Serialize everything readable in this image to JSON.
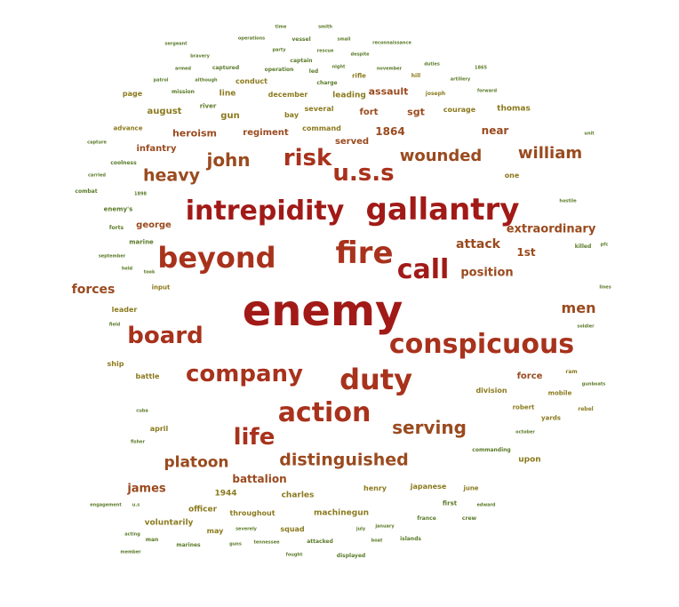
{
  "palette": {
    "darkred": "#a11a17",
    "red": "#a8321c",
    "brown": "#9a4a1e",
    "olive": "#8b7a1e",
    "green": "#5a7a28",
    "lightgreen": "#3f8a3a"
  },
  "words": [
    {
      "text": "enemy",
      "weight": 48,
      "color": "darkred"
    },
    {
      "text": "gallantry",
      "weight": 34,
      "color": "darkred"
    },
    {
      "text": "intrepidity",
      "weight": 30,
      "color": "darkred"
    },
    {
      "text": "beyond",
      "weight": 32,
      "color": "red"
    },
    {
      "text": "fire",
      "weight": 34,
      "color": "red"
    },
    {
      "text": "call",
      "weight": 30,
      "color": "darkred"
    },
    {
      "text": "conspicuous",
      "weight": 30,
      "color": "red"
    },
    {
      "text": "duty",
      "weight": 32,
      "color": "red"
    },
    {
      "text": "action",
      "weight": 30,
      "color": "red"
    },
    {
      "text": "board",
      "weight": 26,
      "color": "red"
    },
    {
      "text": "company",
      "weight": 26,
      "color": "red"
    },
    {
      "text": "u.s.s",
      "weight": 26,
      "color": "red"
    },
    {
      "text": "risk",
      "weight": 26,
      "color": "red"
    },
    {
      "text": "life",
      "weight": 26,
      "color": "red"
    },
    {
      "text": "john",
      "weight": 20,
      "color": "brown"
    },
    {
      "text": "heavy",
      "weight": 19,
      "color": "brown"
    },
    {
      "text": "wounded",
      "weight": 18,
      "color": "brown"
    },
    {
      "text": "william",
      "weight": 18,
      "color": "brown"
    },
    {
      "text": "serving",
      "weight": 20,
      "color": "brown"
    },
    {
      "text": "distinguished",
      "weight": 19,
      "color": "brown"
    },
    {
      "text": "platoon",
      "weight": 17,
      "color": "brown"
    },
    {
      "text": "men",
      "weight": 16,
      "color": "brown"
    },
    {
      "text": "extraordinary",
      "weight": 13,
      "color": "brown"
    },
    {
      "text": "attack",
      "weight": 14,
      "color": "brown"
    },
    {
      "text": "forces",
      "weight": 14,
      "color": "brown"
    },
    {
      "text": "position",
      "weight": 13,
      "color": "brown"
    },
    {
      "text": "1st",
      "weight": 12,
      "color": "brown"
    },
    {
      "text": "james",
      "weight": 13,
      "color": "brown"
    },
    {
      "text": "battalion",
      "weight": 12,
      "color": "brown"
    },
    {
      "text": "near",
      "weight": 12,
      "color": "brown"
    },
    {
      "text": "1864",
      "weight": 12,
      "color": "brown"
    },
    {
      "text": "sgt",
      "weight": 11,
      "color": "brown"
    },
    {
      "text": "fort",
      "weight": 10,
      "color": "brown"
    },
    {
      "text": "assault",
      "weight": 11,
      "color": "brown"
    },
    {
      "text": "served",
      "weight": 10,
      "color": "brown"
    },
    {
      "text": "heroism",
      "weight": 11,
      "color": "brown"
    },
    {
      "text": "regiment",
      "weight": 10,
      "color": "brown"
    },
    {
      "text": "infantry",
      "weight": 10,
      "color": "brown"
    },
    {
      "text": "george",
      "weight": 10,
      "color": "brown"
    },
    {
      "text": "august",
      "weight": 10,
      "color": "olive"
    },
    {
      "text": "gun",
      "weight": 10,
      "color": "olive"
    },
    {
      "text": "thomas",
      "weight": 9,
      "color": "olive"
    },
    {
      "text": "courage",
      "weight": 8,
      "color": "olive"
    },
    {
      "text": "command",
      "weight": 8,
      "color": "olive"
    },
    {
      "text": "several",
      "weight": 8,
      "color": "olive"
    },
    {
      "text": "leading",
      "weight": 9,
      "color": "olive"
    },
    {
      "text": "line",
      "weight": 9,
      "color": "olive"
    },
    {
      "text": "page",
      "weight": 8,
      "color": "olive"
    },
    {
      "text": "conduct",
      "weight": 8,
      "color": "olive"
    },
    {
      "text": "december",
      "weight": 8,
      "color": "olive"
    },
    {
      "text": "bay",
      "weight": 8,
      "color": "olive"
    },
    {
      "text": "advance",
      "weight": 7,
      "color": "olive"
    },
    {
      "text": "one",
      "weight": 8,
      "color": "olive"
    },
    {
      "text": "input",
      "weight": 7,
      "color": "olive"
    },
    {
      "text": "leader",
      "weight": 8,
      "color": "olive"
    },
    {
      "text": "ship",
      "weight": 8,
      "color": "olive"
    },
    {
      "text": "battle",
      "weight": 8,
      "color": "olive"
    },
    {
      "text": "force",
      "weight": 10,
      "color": "brown"
    },
    {
      "text": "division",
      "weight": 8,
      "color": "olive"
    },
    {
      "text": "mobile",
      "weight": 7,
      "color": "olive"
    },
    {
      "text": "upon",
      "weight": 9,
      "color": "olive"
    },
    {
      "text": "april",
      "weight": 8,
      "color": "olive"
    },
    {
      "text": "officer",
      "weight": 9,
      "color": "olive"
    },
    {
      "text": "1944",
      "weight": 9,
      "color": "olive"
    },
    {
      "text": "charles",
      "weight": 9,
      "color": "olive"
    },
    {
      "text": "throughout",
      "weight": 8,
      "color": "olive"
    },
    {
      "text": "machinegun",
      "weight": 9,
      "color": "olive"
    },
    {
      "text": "japanese",
      "weight": 8,
      "color": "olive"
    },
    {
      "text": "henry",
      "weight": 8,
      "color": "olive"
    },
    {
      "text": "june",
      "weight": 7,
      "color": "olive"
    },
    {
      "text": "voluntarily",
      "weight": 9,
      "color": "olive"
    },
    {
      "text": "may",
      "weight": 8,
      "color": "olive"
    },
    {
      "text": "squad",
      "weight": 8,
      "color": "olive"
    },
    {
      "text": "robert",
      "weight": 7,
      "color": "olive"
    },
    {
      "text": "yards",
      "weight": 7,
      "color": "olive"
    },
    {
      "text": "rebel",
      "weight": 6,
      "color": "olive"
    },
    {
      "text": "ram",
      "weight": 6,
      "color": "olive"
    },
    {
      "text": "rifle",
      "weight": 7,
      "color": "olive"
    },
    {
      "text": "hill",
      "weight": 6,
      "color": "olive"
    },
    {
      "text": "joseph",
      "weight": 6,
      "color": "olive"
    },
    {
      "text": "operations",
      "weight": 5,
      "color": "green"
    },
    {
      "text": "time",
      "weight": 5,
      "color": "green"
    },
    {
      "text": "smith",
      "weight": 5,
      "color": "green"
    },
    {
      "text": "sergeant",
      "weight": 5,
      "color": "green"
    },
    {
      "text": "vessel",
      "weight": 6,
      "color": "green"
    },
    {
      "text": "small",
      "weight": 5,
      "color": "green"
    },
    {
      "text": "reconnaissance",
      "weight": 5,
      "color": "green"
    },
    {
      "text": "party",
      "weight": 5,
      "color": "green"
    },
    {
      "text": "rescue",
      "weight": 5,
      "color": "green"
    },
    {
      "text": "despite",
      "weight": 5,
      "color": "green"
    },
    {
      "text": "bravery",
      "weight": 5,
      "color": "green"
    },
    {
      "text": "captain",
      "weight": 6,
      "color": "green"
    },
    {
      "text": "night",
      "weight": 5,
      "color": "green"
    },
    {
      "text": "november",
      "weight": 5,
      "color": "green"
    },
    {
      "text": "duties",
      "weight": 5,
      "color": "green"
    },
    {
      "text": "armed",
      "weight": 5,
      "color": "green"
    },
    {
      "text": "captured",
      "weight": 6,
      "color": "green"
    },
    {
      "text": "operation",
      "weight": 6,
      "color": "green"
    },
    {
      "text": "led",
      "weight": 6,
      "color": "green"
    },
    {
      "text": "1865",
      "weight": 5,
      "color": "green"
    },
    {
      "text": "patrol",
      "weight": 5,
      "color": "green"
    },
    {
      "text": "although",
      "weight": 5,
      "color": "green"
    },
    {
      "text": "charge",
      "weight": 6,
      "color": "green"
    },
    {
      "text": "artillery",
      "weight": 5,
      "color": "green"
    },
    {
      "text": "mission",
      "weight": 6,
      "color": "green"
    },
    {
      "text": "forward",
      "weight": 5,
      "color": "green"
    },
    {
      "text": "river",
      "weight": 7,
      "color": "green"
    },
    {
      "text": "capture",
      "weight": 5,
      "color": "green"
    },
    {
      "text": "unit",
      "weight": 5,
      "color": "green"
    },
    {
      "text": "coolness",
      "weight": 6,
      "color": "green"
    },
    {
      "text": "carried",
      "weight": 5,
      "color": "green"
    },
    {
      "text": "combat",
      "weight": 6,
      "color": "green"
    },
    {
      "text": "1898",
      "weight": 5,
      "color": "green"
    },
    {
      "text": "hostile",
      "weight": 5,
      "color": "green"
    },
    {
      "text": "enemy's",
      "weight": 7,
      "color": "green"
    },
    {
      "text": "forts",
      "weight": 6,
      "color": "green"
    },
    {
      "text": "marine",
      "weight": 7,
      "color": "green"
    },
    {
      "text": "killed",
      "weight": 6,
      "color": "green"
    },
    {
      "text": "pfc",
      "weight": 5,
      "color": "green"
    },
    {
      "text": "september",
      "weight": 5,
      "color": "green"
    },
    {
      "text": "held",
      "weight": 5,
      "color": "green"
    },
    {
      "text": "took",
      "weight": 5,
      "color": "green"
    },
    {
      "text": "lines",
      "weight": 5,
      "color": "green"
    },
    {
      "text": "field",
      "weight": 5,
      "color": "green"
    },
    {
      "text": "soldier",
      "weight": 5,
      "color": "green"
    },
    {
      "text": "gunboats",
      "weight": 5,
      "color": "green"
    },
    {
      "text": "cuba",
      "weight": 5,
      "color": "green"
    },
    {
      "text": "october",
      "weight": 5,
      "color": "green"
    },
    {
      "text": "fisher",
      "weight": 5,
      "color": "green"
    },
    {
      "text": "commanding",
      "weight": 6,
      "color": "green"
    },
    {
      "text": "engagement",
      "weight": 5,
      "color": "green"
    },
    {
      "text": "u.s",
      "weight": 5,
      "color": "green"
    },
    {
      "text": "first",
      "weight": 7,
      "color": "green"
    },
    {
      "text": "edward",
      "weight": 5,
      "color": "green"
    },
    {
      "text": "france",
      "weight": 6,
      "color": "green"
    },
    {
      "text": "crew",
      "weight": 6,
      "color": "green"
    },
    {
      "text": "acting",
      "weight": 5,
      "color": "green"
    },
    {
      "text": "severely",
      "weight": 5,
      "color": "green"
    },
    {
      "text": "january",
      "weight": 5,
      "color": "green"
    },
    {
      "text": "man",
      "weight": 6,
      "color": "green"
    },
    {
      "text": "guns",
      "weight": 5,
      "color": "green"
    },
    {
      "text": "july",
      "weight": 5,
      "color": "green"
    },
    {
      "text": "marines",
      "weight": 6,
      "color": "green"
    },
    {
      "text": "tennessee",
      "weight": 5,
      "color": "green"
    },
    {
      "text": "attacked",
      "weight": 6,
      "color": "green"
    },
    {
      "text": "boat",
      "weight": 5,
      "color": "green"
    },
    {
      "text": "islands",
      "weight": 6,
      "color": "green"
    },
    {
      "text": "member",
      "weight": 5,
      "color": "green"
    },
    {
      "text": "fought",
      "weight": 5,
      "color": "green"
    },
    {
      "text": "displayed",
      "weight": 6,
      "color": "green"
    }
  ]
}
